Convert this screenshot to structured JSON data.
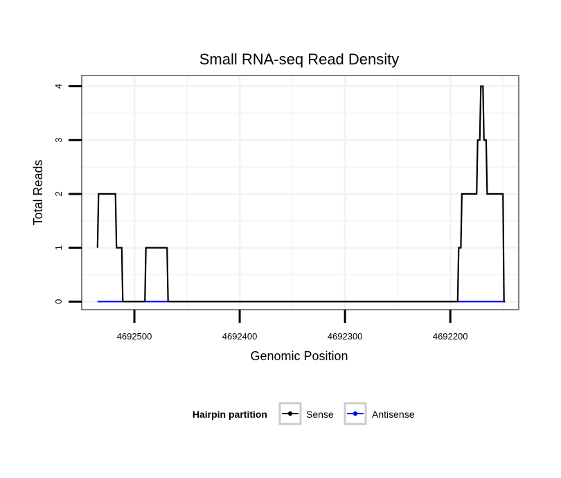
{
  "chart_data": {
    "type": "line",
    "title": "Small RNA-seq Read Density",
    "xlabel": "Genomic Position",
    "ylabel": "Total Reads",
    "x_reversed": true,
    "xlim": [
      4692550,
      4692135
    ],
    "ylim": [
      -0.15,
      4.2
    ],
    "x_ticks": [
      4692500,
      4692400,
      4692300,
      4692200
    ],
    "x_tick_labels": [
      "4692500",
      "4692400",
      "4692300",
      "4692200"
    ],
    "y_ticks": [
      0,
      1,
      2,
      3,
      4
    ],
    "y_tick_labels": [
      "0",
      "1",
      "2",
      "3",
      "4"
    ],
    "grid": true,
    "legend": {
      "title": "Hairpin partition",
      "position": "bottom"
    },
    "series": [
      {
        "name": "Sense",
        "color": "#000000",
        "x": [
          4692535,
          4692534,
          4692518,
          4692517,
          4692512,
          4692511,
          4692490,
          4692489,
          4692469,
          4692468,
          4692193,
          4692192,
          4692190,
          4692189,
          4692175,
          4692174,
          4692172,
          4692171,
          4692169,
          4692168,
          4692166,
          4692165,
          4692150,
          4692149,
          4692148
        ],
        "y": [
          1,
          2,
          2,
          1,
          1,
          0,
          0,
          1,
          1,
          0,
          0,
          1,
          1,
          2,
          2,
          3,
          3,
          4,
          4,
          3,
          3,
          2,
          2,
          0,
          0
        ]
      },
      {
        "name": "Antisense",
        "color": "#0000ff",
        "x": [
          4692535,
          4692148
        ],
        "y": [
          0,
          0
        ]
      }
    ]
  }
}
